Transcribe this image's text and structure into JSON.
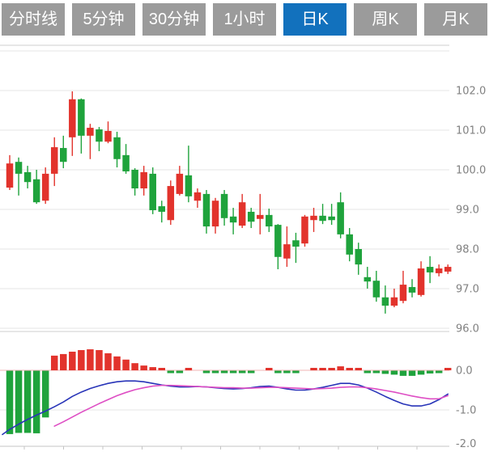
{
  "tabs": {
    "items": [
      {
        "id": "tab-time-line",
        "label": "分时线",
        "active": false
      },
      {
        "id": "tab-5min",
        "label": "5分钟",
        "active": false
      },
      {
        "id": "tab-30min",
        "label": "30分钟",
        "active": false
      },
      {
        "id": "tab-1hour",
        "label": "1小时",
        "active": false
      },
      {
        "id": "tab-day-k",
        "label": "日K",
        "active": true
      },
      {
        "id": "tab-week-k",
        "label": "周K",
        "active": false
      },
      {
        "id": "tab-month-k",
        "label": "月K",
        "active": false
      }
    ]
  },
  "colors": {
    "tab_gray": "#9b9b9b",
    "tab_active_blue": "#1271bd",
    "candle_up_red": "#e2332c",
    "candle_down_green": "#1fa33c",
    "dif_line_blue": "#2834b8",
    "dea_line_magenta": "#de4ec4",
    "grid_line": "#e6e6e6",
    "pane_border": "#cfcfcf",
    "macd_zero_line_pink": "#f2b6b6",
    "axis_line": "#c4c4c4",
    "axis_label_gray": "#818181"
  },
  "chart_data": {
    "type": "candlestick",
    "indicator": "MACD",
    "grid": true,
    "legend": "none",
    "price_axis": {
      "side": "right",
      "labels": [
        "102.0",
        "101.0",
        "100.0",
        "99.0",
        "98.0",
        "97.0",
        "96.0"
      ],
      "values": [
        102,
        101,
        100,
        99,
        98,
        97,
        96
      ],
      "ylim": [
        95.8,
        103.1
      ]
    },
    "macd_axis": {
      "side": "right",
      "labels": [
        "0.0",
        "-1.0",
        "-2.0"
      ],
      "values": [
        0,
        -1,
        -2
      ],
      "ylim": [
        -2.0,
        0.6
      ]
    },
    "up_color_convention": "red-rises-green-falls (CN)",
    "candles_ohlc": [
      [
        99.55,
        100.37,
        99.49,
        100.16
      ],
      [
        100.2,
        100.31,
        99.35,
        99.9
      ],
      [
        99.94,
        100.1,
        99.53,
        99.69
      ],
      [
        99.76,
        100.0,
        99.14,
        99.18
      ],
      [
        99.22,
        100.06,
        99.14,
        99.9
      ],
      [
        99.9,
        100.82,
        99.59,
        100.57
      ],
      [
        100.55,
        100.86,
        100.04,
        100.2
      ],
      [
        100.82,
        101.98,
        100.35,
        101.78
      ],
      [
        101.78,
        101.8,
        100.41,
        100.86
      ],
      [
        100.86,
        101.16,
        100.27,
        101.06
      ],
      [
        101.02,
        101.08,
        100.47,
        100.71
      ],
      [
        100.71,
        101.22,
        100.67,
        100.98
      ],
      [
        100.82,
        100.96,
        100.06,
        100.27
      ],
      [
        100.37,
        100.65,
        99.9,
        99.96
      ],
      [
        100.0,
        100.04,
        99.35,
        99.53
      ],
      [
        99.53,
        100.1,
        99.35,
        99.94
      ],
      [
        99.9,
        100.06,
        98.88,
        98.98
      ],
      [
        99.08,
        99.22,
        98.67,
        98.94
      ],
      [
        98.73,
        99.73,
        98.61,
        99.59
      ],
      [
        99.39,
        100.1,
        99.35,
        99.9
      ],
      [
        99.86,
        100.61,
        99.18,
        99.33
      ],
      [
        99.22,
        99.53,
        99.04,
        99.43
      ],
      [
        99.39,
        99.49,
        98.39,
        98.57
      ],
      [
        98.57,
        99.29,
        98.39,
        99.22
      ],
      [
        99.39,
        99.49,
        98.59,
        98.78
      ],
      [
        98.82,
        99.04,
        98.37,
        98.67
      ],
      [
        98.59,
        99.39,
        98.53,
        99.18
      ],
      [
        98.94,
        99.04,
        98.53,
        98.69
      ],
      [
        98.76,
        99.39,
        98.37,
        98.86
      ],
      [
        98.86,
        99.02,
        98.43,
        98.57
      ],
      [
        98.61,
        98.63,
        97.49,
        97.8
      ],
      [
        97.76,
        98.57,
        97.55,
        98.12
      ],
      [
        98.22,
        98.41,
        97.65,
        98.06
      ],
      [
        98.14,
        98.86,
        98.06,
        98.82
      ],
      [
        98.73,
        99.04,
        98.43,
        98.84
      ],
      [
        98.84,
        99.14,
        98.63,
        98.71
      ],
      [
        98.82,
        99.14,
        98.61,
        98.73
      ],
      [
        99.18,
        99.43,
        98.27,
        98.37
      ],
      [
        98.37,
        98.53,
        97.69,
        97.86
      ],
      [
        98.0,
        98.16,
        97.35,
        97.61
      ],
      [
        97.29,
        97.55,
        97.0,
        97.18
      ],
      [
        97.2,
        97.45,
        96.67,
        96.78
      ],
      [
        96.78,
        97.08,
        96.37,
        96.57
      ],
      [
        96.57,
        97.0,
        96.53,
        96.78
      ],
      [
        96.69,
        97.45,
        96.63,
        97.1
      ],
      [
        97.04,
        97.24,
        96.78,
        96.9
      ],
      [
        96.84,
        97.69,
        96.8,
        97.51
      ],
      [
        97.55,
        97.82,
        97.14,
        97.41
      ],
      [
        97.39,
        97.61,
        97.31,
        97.51
      ],
      [
        97.43,
        97.61,
        97.37,
        97.55
      ]
    ],
    "macd": {
      "histogram": [
        -1.6,
        -1.57,
        -1.57,
        -1.58,
        -1.18,
        0.37,
        0.41,
        0.47,
        0.51,
        0.53,
        0.51,
        0.43,
        0.35,
        0.27,
        0.18,
        0.12,
        0.08,
        0.03,
        -0.03,
        -0.03,
        0.02,
        0,
        -0.03,
        -0.04,
        -0.03,
        -0.04,
        -0.04,
        -0.03,
        0,
        0.02,
        -0.06,
        -0.06,
        -0.06,
        0,
        0.03,
        0.03,
        0.04,
        0.1,
        0.06,
        0.02,
        -0.02,
        -0.04,
        -0.08,
        -0.1,
        -0.13,
        -0.13,
        -0.1,
        -0.07,
        -0.02,
        0.03
      ],
      "dif_start": {
        "x": 3,
        "value": -1.62
      },
      "dif": [
        -1.49,
        -1.36,
        -1.24,
        -1.13,
        -1.03,
        -0.92,
        -0.8,
        -0.66,
        -0.55,
        -0.46,
        -0.39,
        -0.33,
        -0.29,
        -0.27,
        -0.27,
        -0.29,
        -0.33,
        -0.37,
        -0.4,
        -0.42,
        -0.42,
        -0.41,
        -0.42,
        -0.44,
        -0.46,
        -0.47,
        -0.46,
        -0.44,
        -0.41,
        -0.4,
        -0.43,
        -0.47,
        -0.5,
        -0.5,
        -0.47,
        -0.43,
        -0.38,
        -0.33,
        -0.33,
        -0.37,
        -0.45,
        -0.55,
        -0.66,
        -0.76,
        -0.85,
        -0.9,
        -0.9,
        -0.85,
        -0.74,
        -0.6
      ],
      "dea": [
        null,
        null,
        null,
        null,
        null,
        -1.41,
        -1.3,
        -1.18,
        -1.06,
        -0.95,
        -0.84,
        -0.74,
        -0.64,
        -0.56,
        -0.49,
        -0.44,
        -0.4,
        -0.38,
        -0.38,
        -0.39,
        -0.4,
        -0.41,
        -0.42,
        -0.43,
        -0.44,
        -0.44,
        -0.45,
        -0.45,
        -0.44,
        -0.43,
        -0.43,
        -0.44,
        -0.45,
        -0.46,
        -0.47,
        -0.46,
        -0.45,
        -0.43,
        -0.42,
        -0.42,
        -0.44,
        -0.47,
        -0.51,
        -0.55,
        -0.6,
        -0.65,
        -0.69,
        -0.72,
        -0.72,
        -0.64
      ]
    }
  }
}
